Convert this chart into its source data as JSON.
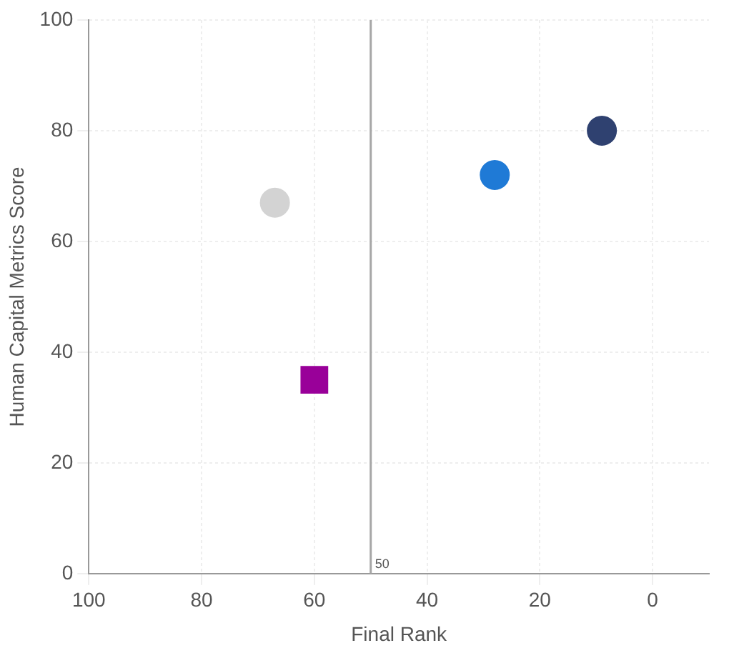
{
  "chart_data": {
    "type": "scatter",
    "xlabel": "Final Rank",
    "ylabel": "Human Capital Metrics Score",
    "xlim": [
      100,
      -10
    ],
    "xticks": [
      100,
      80,
      60,
      40,
      20,
      0
    ],
    "ylim": [
      0,
      100
    ],
    "yticks": [
      0,
      20,
      40,
      60,
      80,
      100
    ],
    "grid": true,
    "legend": false,
    "series": [
      {
        "color": "#d3d3d3",
        "marker": "circle",
        "x": [
          67
        ],
        "values": [
          67
        ]
      },
      {
        "color": "#990099",
        "marker": "square",
        "x": [
          60
        ],
        "values": [
          35
        ]
      },
      {
        "color": "#1f7ad6",
        "marker": "circle",
        "x": [
          28
        ],
        "values": [
          72
        ]
      },
      {
        "color": "#2f4170",
        "marker": "circle",
        "x": [
          9
        ],
        "values": [
          80
        ]
      }
    ],
    "ref_lines": [
      {
        "axis": "x",
        "value": 50,
        "label": "50",
        "color": "#a6a6a6"
      }
    ]
  }
}
